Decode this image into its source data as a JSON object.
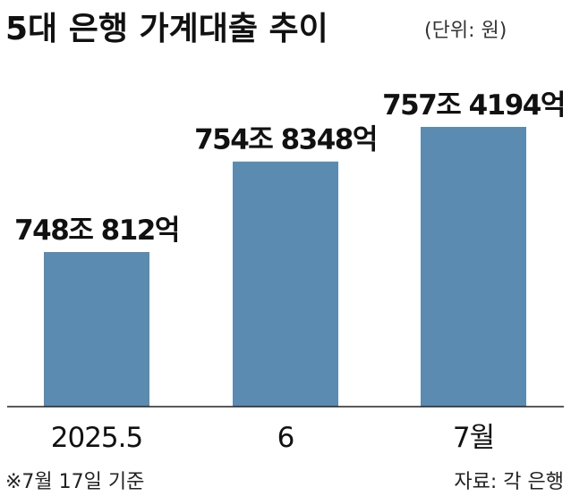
{
  "chart_data": {
    "type": "bar",
    "title": "5대 은행 가계대출 추이",
    "unit_label": "(단위: 원)",
    "categories": [
      "2025.5",
      "6",
      "7월"
    ],
    "values": [
      748.0812,
      754.8348,
      757.4194
    ],
    "value_labels": [
      "748조 812억",
      "754조 8348억",
      "757조 4194억"
    ],
    "footnote": "※7월 17일 기준",
    "source": "자료: 각 은행",
    "colors": {
      "bar": "#5b8bb1",
      "text": "#111111"
    }
  }
}
